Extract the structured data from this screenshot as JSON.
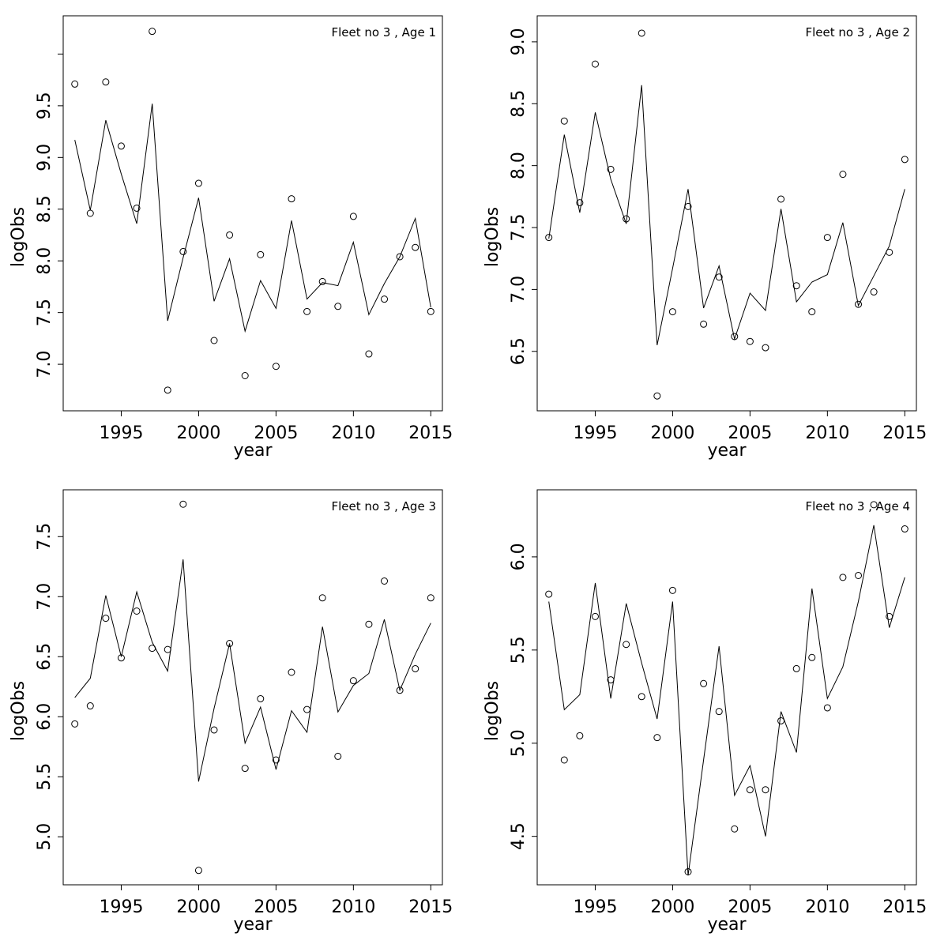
{
  "chart_data": [
    {
      "type": "line",
      "title": "Fleet no 3 , Age 1",
      "xlabel": "year",
      "ylabel": "logObs",
      "x": [
        1992,
        1993,
        1994,
        1995,
        1996,
        1997,
        1998,
        1999,
        2000,
        2001,
        2002,
        2003,
        2004,
        2005,
        2006,
        2007,
        2008,
        2009,
        2010,
        2011,
        2012,
        2013,
        2014,
        2015
      ],
      "xticks": [
        "1995",
        "2000",
        "2005",
        "2010",
        "2015"
      ],
      "yticks": [
        "7.0",
        "7.5",
        "8.0",
        "8.5",
        "9.0",
        "9.5"
      ],
      "xlim": [
        1991.25,
        2015.75
      ],
      "ylim": [
        6.55,
        10.37
      ],
      "series": [
        {
          "kind": "points",
          "values": [
            9.71,
            8.46,
            9.73,
            9.11,
            8.51,
            10.22,
            6.75,
            8.09,
            8.75,
            7.23,
            8.25,
            6.89,
            8.06,
            6.98,
            8.6,
            7.51,
            7.8,
            7.56,
            8.43,
            7.1,
            7.63,
            8.04,
            8.13,
            7.51
          ]
        },
        {
          "kind": "line",
          "values": [
            9.17,
            8.49,
            9.36,
            8.84,
            8.36,
            9.52,
            7.42,
            8.03,
            8.61,
            7.61,
            8.02,
            7.32,
            7.81,
            7.54,
            8.39,
            7.63,
            7.79,
            7.76,
            8.18,
            7.48,
            7.78,
            8.04,
            8.41,
            7.55
          ]
        }
      ]
    },
    {
      "type": "line",
      "title": "Fleet no 3 , Age 2",
      "xlabel": "year",
      "ylabel": "logObs",
      "x": [
        1992,
        1993,
        1994,
        1995,
        1996,
        1997,
        1998,
        1999,
        2000,
        2001,
        2002,
        2003,
        2004,
        2005,
        2006,
        2007,
        2008,
        2009,
        2010,
        2011,
        2012,
        2013,
        2014,
        2015
      ],
      "xticks": [
        "1995",
        "2000",
        "2005",
        "2010",
        "2015"
      ],
      "yticks": [
        "6.5",
        "7.0",
        "7.5",
        "8.0",
        "8.5",
        "9.0"
      ],
      "xlim": [
        1991.25,
        2015.75
      ],
      "ylim": [
        6.02,
        9.21
      ],
      "series": [
        {
          "kind": "points",
          "values": [
            7.42,
            8.36,
            7.7,
            8.82,
            7.97,
            7.57,
            9.07,
            6.14,
            6.82,
            7.67,
            6.72,
            7.1,
            6.62,
            6.58,
            6.53,
            7.73,
            7.03,
            6.82,
            7.42,
            7.93,
            6.88,
            6.98,
            7.3,
            8.05
          ]
        },
        {
          "kind": "line",
          "values": [
            7.41,
            8.25,
            7.62,
            8.43,
            7.89,
            7.53,
            8.65,
            6.55,
            7.17,
            7.81,
            6.85,
            7.19,
            6.6,
            6.97,
            6.83,
            7.65,
            6.9,
            7.06,
            7.12,
            7.54,
            6.87,
            7.11,
            7.35,
            7.81
          ]
        }
      ]
    },
    {
      "type": "line",
      "title": "Fleet no 3 , Age 3",
      "xlabel": "year",
      "ylabel": "logObs",
      "x": [
        1992,
        1993,
        1994,
        1995,
        1996,
        1997,
        1998,
        1999,
        2000,
        2001,
        2002,
        2003,
        2004,
        2005,
        2006,
        2007,
        2008,
        2009,
        2010,
        2011,
        2012,
        2013,
        2014,
        2015
      ],
      "xticks": [
        "1995",
        "2000",
        "2005",
        "2010",
        "2015"
      ],
      "yticks": [
        "5.0",
        "5.5",
        "6.0",
        "6.5",
        "7.0",
        "7.5"
      ],
      "xlim": [
        1991.25,
        2015.75
      ],
      "ylim": [
        4.6,
        7.89
      ],
      "series": [
        {
          "kind": "points",
          "values": [
            5.94,
            6.09,
            6.82,
            6.49,
            6.88,
            6.57,
            6.56,
            7.77,
            4.72,
            5.89,
            6.61,
            5.57,
            6.15,
            5.64,
            6.37,
            6.06,
            6.99,
            5.67,
            6.3,
            6.77,
            7.13,
            6.22,
            6.4,
            6.99
          ]
        },
        {
          "kind": "line",
          "values": [
            6.16,
            6.32,
            7.01,
            6.5,
            7.04,
            6.62,
            6.38,
            7.31,
            5.46,
            6.07,
            6.61,
            5.78,
            6.08,
            5.56,
            6.05,
            5.87,
            6.75,
            6.04,
            6.26,
            6.36,
            6.81,
            6.22,
            6.52,
            6.78
          ]
        }
      ]
    },
    {
      "type": "line",
      "title": "Fleet no 3 , Age 4",
      "xlabel": "year",
      "ylabel": "logObs",
      "x": [
        1992,
        1993,
        1994,
        1995,
        1996,
        1997,
        1998,
        1999,
        2000,
        2001,
        2002,
        2003,
        2004,
        2005,
        2006,
        2007,
        2008,
        2009,
        2010,
        2011,
        2012,
        2013,
        2014,
        2015
      ],
      "xticks": [
        "1995",
        "2000",
        "2005",
        "2010",
        "2015"
      ],
      "yticks": [
        "4.5",
        "5.0",
        "5.5",
        "6.0"
      ],
      "xlim": [
        1991.25,
        2015.75
      ],
      "ylim": [
        4.24,
        6.36
      ],
      "series": [
        {
          "kind": "points",
          "values": [
            5.8,
            4.91,
            5.04,
            5.68,
            5.34,
            5.53,
            5.25,
            5.03,
            5.82,
            4.31,
            5.32,
            5.17,
            4.54,
            4.75,
            4.75,
            5.12,
            5.4,
            5.46,
            5.19,
            5.89,
            5.9,
            6.28,
            5.68,
            6.15
          ]
        },
        {
          "kind": "line",
          "values": [
            5.76,
            5.18,
            5.26,
            5.86,
            5.24,
            5.75,
            5.43,
            5.13,
            5.76,
            4.29,
            4.91,
            5.52,
            4.72,
            4.88,
            4.5,
            5.17,
            4.95,
            5.83,
            5.24,
            5.41,
            5.76,
            6.17,
            5.62,
            5.89
          ]
        }
      ]
    }
  ]
}
